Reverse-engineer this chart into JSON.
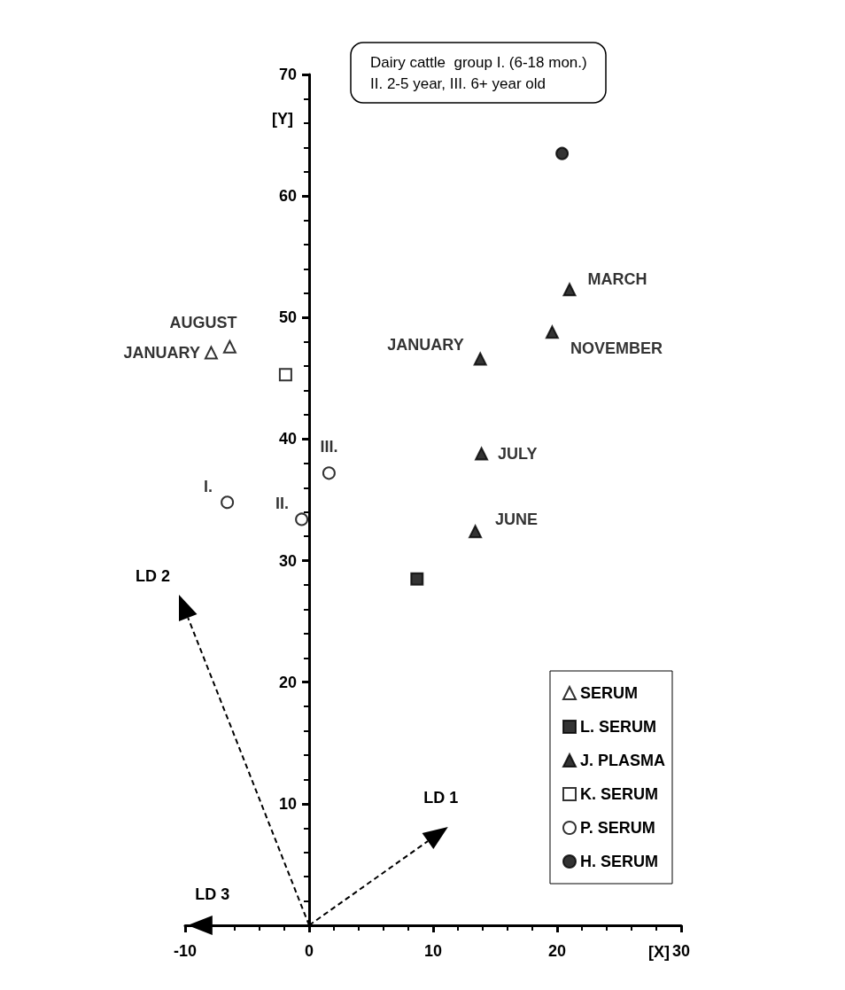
{
  "chart_data": {
    "type": "scatter",
    "title": "Dairy cattle  group I. (6-18 mon.)\nII. 2-5 year, III. 6+ year old",
    "xlabel": "[X]",
    "ylabel": "[Y]",
    "xlim": [
      -10,
      30
    ],
    "xticks": [
      -10,
      0,
      10,
      20,
      30
    ],
    "ylim": [
      0,
      70
    ],
    "yticks": [
      10,
      20,
      30,
      40,
      50,
      60,
      70
    ],
    "grid": false,
    "legend": "bottom right",
    "series": [
      {
        "name": "SERUM",
        "marker": "triangle",
        "color": "#ffffff",
        "x": [
          -7.9,
          -6.4
        ],
        "values": [
          47.1,
          47.6
        ],
        "value_labels": [
          "JANUARY",
          "AUGUST"
        ]
      },
      {
        "name": "L. SERUM",
        "marker": "square",
        "color": "#000000",
        "x": [
          8.7
        ],
        "values": [
          28.5
        ]
      },
      {
        "name": "J. PLASMA",
        "marker": "triangle",
        "color": "#000000",
        "x": [
          13.8,
          13.9,
          13.4,
          19.6,
          21.0
        ],
        "values": [
          46.6,
          38.8,
          32.4,
          48.8,
          52.3
        ],
        "value_labels": [
          "JANUARY",
          "JULY",
          "JUNE",
          "NOVEMBER",
          "MARCH"
        ]
      },
      {
        "name": "K. SERUM",
        "marker": "square",
        "color": "#ffffff",
        "x": [
          -1.9
        ],
        "values": [
          45.3
        ]
      },
      {
        "name": "P. SERUM",
        "marker": "circle",
        "color": "#ffffff",
        "x": [
          -6.6,
          -0.6,
          1.6
        ],
        "values": [
          34.8,
          33.4,
          37.2
        ],
        "value_labels": [
          "I.",
          "II.",
          "III."
        ]
      },
      {
        "name": "H. SERUM",
        "marker": "circle",
        "color": "#000000",
        "x": [
          20.4
        ],
        "values": [
          63.5
        ]
      }
    ],
    "annotations": [
      "LD 1",
      "LD 2",
      "LD 3"
    ]
  }
}
